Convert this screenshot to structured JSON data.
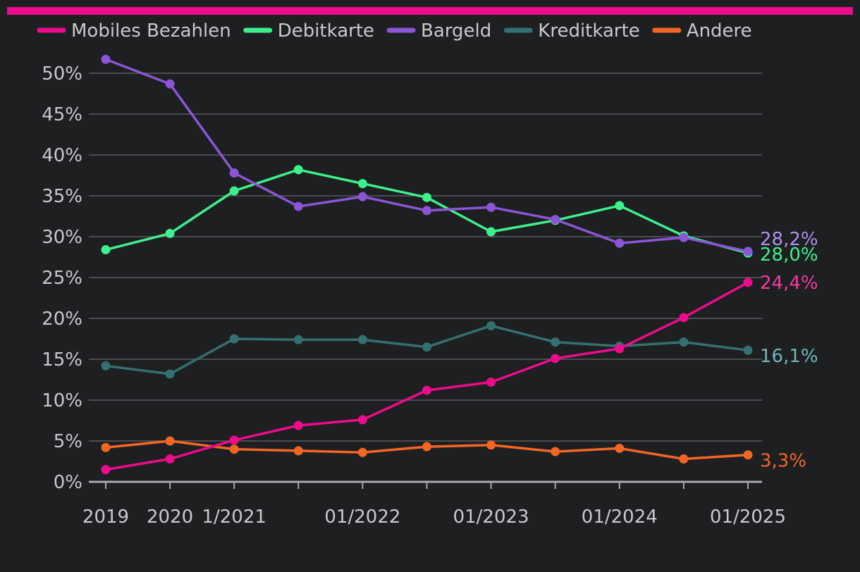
{
  "accent_color": "#ec0c8c",
  "background_color": "#1e1f21",
  "chart_data": {
    "type": "line",
    "title": "",
    "xlabel": "",
    "ylabel": "",
    "ylim": [
      0,
      52
    ],
    "yticks": [
      0,
      5,
      10,
      15,
      20,
      25,
      30,
      35,
      40,
      45,
      50
    ],
    "ytick_labels": [
      "0%",
      "5%",
      "10%",
      "15%",
      "20%",
      "25%",
      "30%",
      "35%",
      "40%",
      "45%",
      "50%"
    ],
    "grid": true,
    "legend_position": "top-left",
    "x": [
      0,
      1,
      2,
      3,
      4,
      5,
      6,
      7,
      8,
      9,
      10
    ],
    "xtick_labels": [
      "2019",
      "2020",
      "1/2021",
      "",
      "01/2022",
      "",
      "01/2023",
      "",
      "01/2024",
      "",
      "01/2025"
    ],
    "series": [
      {
        "name": "Mobiles Bezahlen",
        "color": "#ec0c8c",
        "values": [
          1.5,
          2.8,
          5.1,
          6.9,
          7.6,
          11.2,
          12.2,
          15.1,
          16.3,
          20.1,
          24.4
        ],
        "end_label": "24,4%",
        "label_color": "#f03ba0"
      },
      {
        "name": "Debitkarte",
        "color": "#3ef08c",
        "values": [
          28.4,
          30.4,
          35.6,
          38.2,
          36.5,
          34.8,
          30.6,
          32.0,
          33.8,
          30.1,
          28.0
        ],
        "end_label": "28,0%",
        "label_color": "#3ef08c"
      },
      {
        "name": "Bargeld",
        "color": "#8b55d6",
        "values": [
          51.7,
          48.7,
          37.8,
          33.7,
          34.9,
          33.2,
          33.6,
          32.1,
          29.2,
          29.9,
          28.2
        ],
        "end_label": "28,2%",
        "label_color": "#b08ef0"
      },
      {
        "name": "Kreditkarte",
        "color": "#357070",
        "values": [
          14.2,
          13.2,
          17.5,
          17.4,
          17.4,
          16.5,
          19.1,
          17.1,
          16.6,
          17.1,
          16.1
        ],
        "end_label": "16,1%",
        "label_color": "#6fb8b8"
      },
      {
        "name": "Andere",
        "color": "#f26624",
        "values": [
          4.2,
          5.0,
          4.0,
          3.8,
          3.6,
          4.3,
          4.5,
          3.7,
          4.1,
          2.8,
          3.3
        ],
        "end_label": "3,3%",
        "label_color": "#f26624"
      }
    ]
  }
}
